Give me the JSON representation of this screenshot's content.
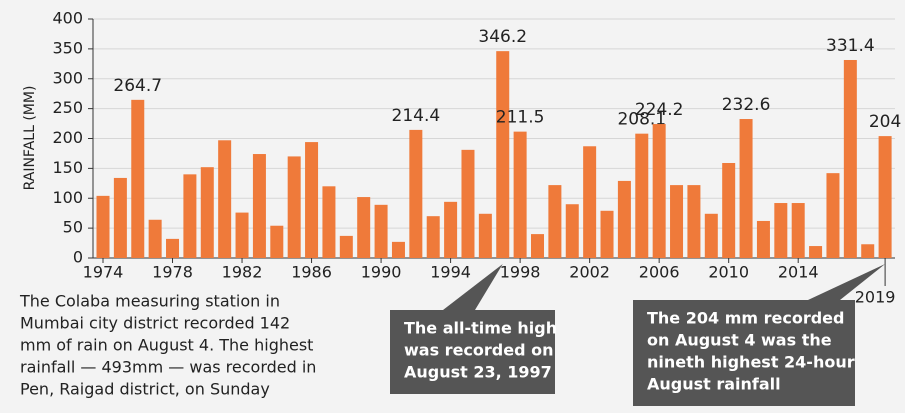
{
  "chart_data": {
    "type": "bar",
    "y_label": "RAINFALL (MM)",
    "categories": [
      "1974",
      null,
      null,
      null,
      "1978",
      null,
      null,
      null,
      "1982",
      null,
      null,
      null,
      "1986",
      null,
      null,
      null,
      "1990",
      null,
      null,
      null,
      "1994",
      null,
      null,
      null,
      "1998",
      null,
      null,
      null,
      "2002",
      null,
      null,
      null,
      "2006",
      null,
      null,
      null,
      "2010",
      null,
      null,
      null,
      "2014",
      null,
      null,
      null,
      null,
      "2019"
    ],
    "values": [
      104,
      134,
      264.7,
      64,
      32,
      140,
      152,
      197,
      76,
      174,
      54,
      170,
      194,
      120,
      37,
      102,
      89,
      27,
      214.4,
      70,
      94,
      181,
      74,
      346.2,
      211.5,
      40,
      122,
      90,
      187,
      79,
      129,
      208.1,
      224.2,
      122,
      122,
      74,
      159,
      232.6,
      62,
      92,
      92,
      20,
      142,
      331.4,
      23,
      204
    ],
    "value_labels": [
      null,
      null,
      "264.7",
      null,
      null,
      null,
      null,
      null,
      null,
      null,
      null,
      null,
      null,
      null,
      null,
      null,
      null,
      null,
      "214.4",
      null,
      null,
      null,
      null,
      "346.2",
      "211.5",
      null,
      null,
      null,
      null,
      null,
      null,
      "208.1",
      "224.2",
      null,
      null,
      null,
      null,
      "232.6",
      null,
      null,
      null,
      null,
      null,
      "331.4",
      null,
      "204"
    ],
    "color": "#ef7a3a",
    "ylim": [
      0,
      400
    ],
    "yticks": [
      0,
      50,
      100,
      150,
      200,
      250,
      300,
      350,
      400
    ],
    "grid": true,
    "note": [
      "The Colaba measuring station in",
      "Mumbai city district recorded 142",
      "mm of rain on August 4. The highest",
      "rainfall — 493mm — was recorded in",
      "Pen, Raigad district, on Sunday"
    ],
    "callouts": [
      {
        "lines": [
          "The all-time high",
          "was recorded on",
          "August 23, 1997"
        ],
        "target": 23
      },
      {
        "lines": [
          "The 204 mm recorded",
          "on August 4 was the",
          "nineth highest 24-hour",
          "August rainfall"
        ],
        "target": 45
      }
    ]
  }
}
